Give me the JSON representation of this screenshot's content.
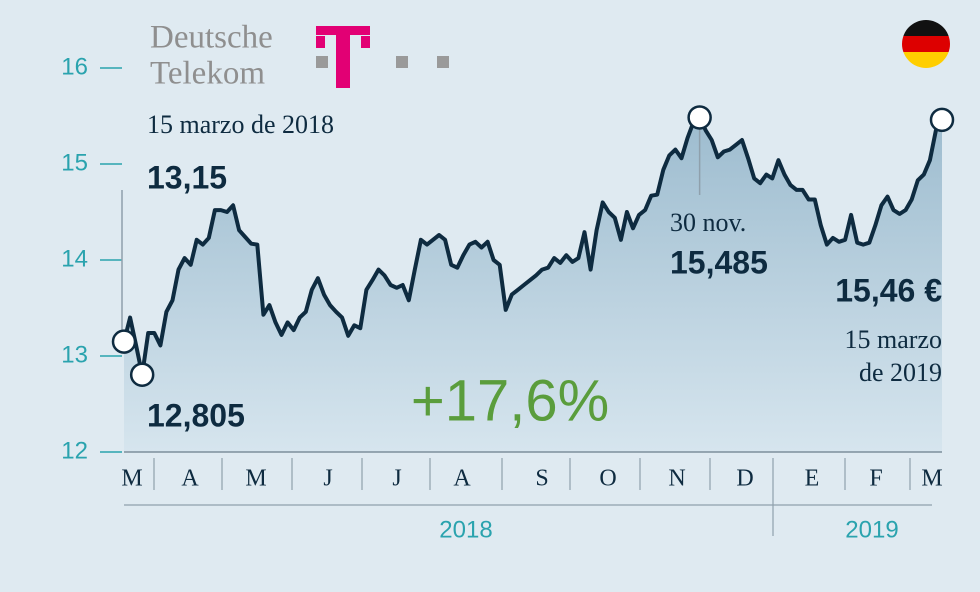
{
  "chart_data": {
    "type": "line",
    "logo": {
      "line1": "Deutsche",
      "line2": "Telekom"
    },
    "color": "#0e2b40",
    "values": [
      13.15,
      13.4,
      13.11,
      12.805,
      13.24,
      13.24,
      13.11,
      13.46,
      13.58,
      13.9,
      14.02,
      13.95,
      14.21,
      14.16,
      14.23,
      14.52,
      14.52,
      14.5,
      14.57,
      14.31,
      14.24,
      14.17,
      14.16,
      13.43,
      13.53,
      13.35,
      13.22,
      13.35,
      13.27,
      13.4,
      13.46,
      13.69,
      13.81,
      13.64,
      13.53,
      13.46,
      13.4,
      13.21,
      13.32,
      13.29,
      13.69,
      13.79,
      13.9,
      13.84,
      13.74,
      13.71,
      13.74,
      13.58,
      13.9,
      14.21,
      14.16,
      14.21,
      14.26,
      14.21,
      13.95,
      13.92,
      14.05,
      14.16,
      14.19,
      14.13,
      14.19,
      14.0,
      13.95,
      13.48,
      13.64,
      13.69,
      13.74,
      13.79,
      13.84,
      13.9,
      13.92,
      14.02,
      13.97,
      14.05,
      13.98,
      14.02,
      14.29,
      13.9,
      14.31,
      14.6,
      14.5,
      14.44,
      14.21,
      14.5,
      14.33,
      14.47,
      14.52,
      14.67,
      14.68,
      14.94,
      15.09,
      15.15,
      15.06,
      15.27,
      15.44,
      15.485,
      15.35,
      15.25,
      15.07,
      15.13,
      15.15,
      15.2,
      15.25,
      15.06,
      14.85,
      14.8,
      14.89,
      14.85,
      15.04,
      14.89,
      14.78,
      14.73,
      14.73,
      14.63,
      14.63,
      14.36,
      14.16,
      14.23,
      14.19,
      14.21,
      14.47,
      14.18,
      14.16,
      14.18,
      14.36,
      14.57,
      14.66,
      14.52,
      14.48,
      14.52,
      14.63,
      14.83,
      14.89,
      15.04,
      15.35,
      15.46
    ],
    "ylim": [
      12,
      16
    ],
    "yticks": [
      12,
      13,
      14,
      15,
      16
    ],
    "xlabels": [
      "M",
      "A",
      "M",
      "J",
      "J",
      "A",
      "S",
      "O",
      "N",
      "D",
      "E",
      "F",
      "M"
    ],
    "years": [
      "2018",
      "2019"
    ],
    "annotations": [
      {
        "date": "15 marzo de 2018",
        "label": "13,15",
        "value": 13.15
      },
      {
        "label": "12,805",
        "value": 12.805
      },
      {
        "date": "30 nov.",
        "label": "15,485",
        "value": 15.485
      },
      {
        "label": "15,46 €",
        "value": 15.46,
        "date": [
          "15 marzo",
          "de 2019"
        ]
      }
    ],
    "change": "+17,6%"
  }
}
